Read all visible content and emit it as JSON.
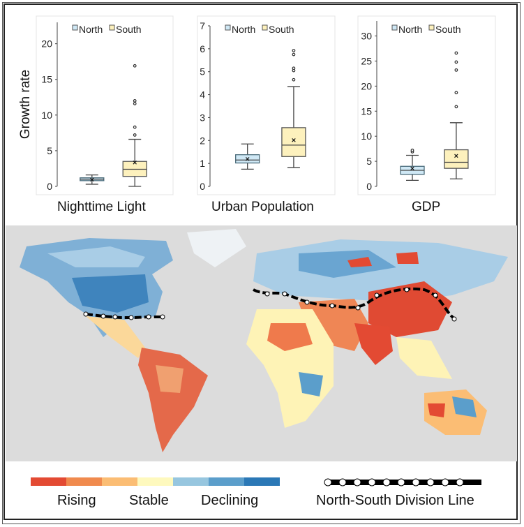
{
  "chart_data": [
    {
      "type": "box",
      "title": "Nighttime Light",
      "ylabel": "Growth rate",
      "ylim": [
        0,
        23
      ],
      "yticks": [
        0,
        5,
        10,
        15,
        20
      ],
      "legend": [
        "North",
        "South"
      ],
      "legend_position": "top",
      "series": [
        {
          "name": "North",
          "whisker_low": 0.3,
          "q1": 0.8,
          "median": 1.0,
          "q3": 1.2,
          "whisker_high": 1.6,
          "mean": 1.0,
          "outliers": []
        },
        {
          "name": "South",
          "whisker_low": 0.0,
          "q1": 1.4,
          "median": 2.4,
          "q3": 3.5,
          "whisker_high": 6.6,
          "mean": 3.4,
          "outliers": [
            7.2,
            8.3,
            11.6,
            12.0,
            16.9
          ]
        }
      ]
    },
    {
      "type": "box",
      "title": "Urban Population",
      "ylabel": "",
      "ylim": [
        0,
        7
      ],
      "yticks": [
        0,
        1,
        2,
        3,
        4,
        5,
        6,
        7
      ],
      "legend": [
        "North",
        "South"
      ],
      "legend_position": "top",
      "series": [
        {
          "name": "North",
          "whisker_low": 0.75,
          "q1": 1.02,
          "median": 1.15,
          "q3": 1.38,
          "whisker_high": 1.85,
          "mean": 1.2,
          "outliers": []
        },
        {
          "name": "South",
          "whisker_low": 0.82,
          "q1": 1.3,
          "median": 1.8,
          "q3": 2.56,
          "whisker_high": 4.35,
          "mean": 2.03,
          "outliers": [
            4.65,
            5.05,
            5.15,
            5.75,
            5.92
          ]
        }
      ]
    },
    {
      "type": "box",
      "title": "GDP",
      "ylabel": "",
      "ylim": [
        0,
        33
      ],
      "yticks": [
        0,
        5,
        10,
        15,
        20,
        25,
        30
      ],
      "legend": [
        "North",
        "South"
      ],
      "legend_position": "top",
      "series": [
        {
          "name": "North",
          "whisker_low": 1.2,
          "q1": 2.4,
          "median": 3.2,
          "q3": 4.0,
          "whisker_high": 6.2,
          "mean": 3.6,
          "outliers": [
            6.9,
            7.2
          ]
        },
        {
          "name": "South",
          "whisker_low": 1.5,
          "q1": 3.6,
          "median": 4.8,
          "q3": 7.3,
          "whisker_high": 12.7,
          "mean": 6.1,
          "outliers": [
            15.9,
            18.7,
            23.2,
            24.8,
            26.6
          ]
        }
      ]
    }
  ],
  "colors": {
    "North": "#cfe8f5",
    "South": "#fdf1bd",
    "north_edge": "#4a6b7a",
    "south_edge": "#555"
  },
  "map_legend": {
    "colors": [
      "#e34a33",
      "#f08a4e",
      "#fbbd74",
      "#fef9be",
      "#97c6df",
      "#5b9ecb",
      "#2b78b6"
    ],
    "labels": [
      "Rising",
      "Stable",
      "Declining"
    ],
    "division_line_label": "North-South Division Line"
  }
}
